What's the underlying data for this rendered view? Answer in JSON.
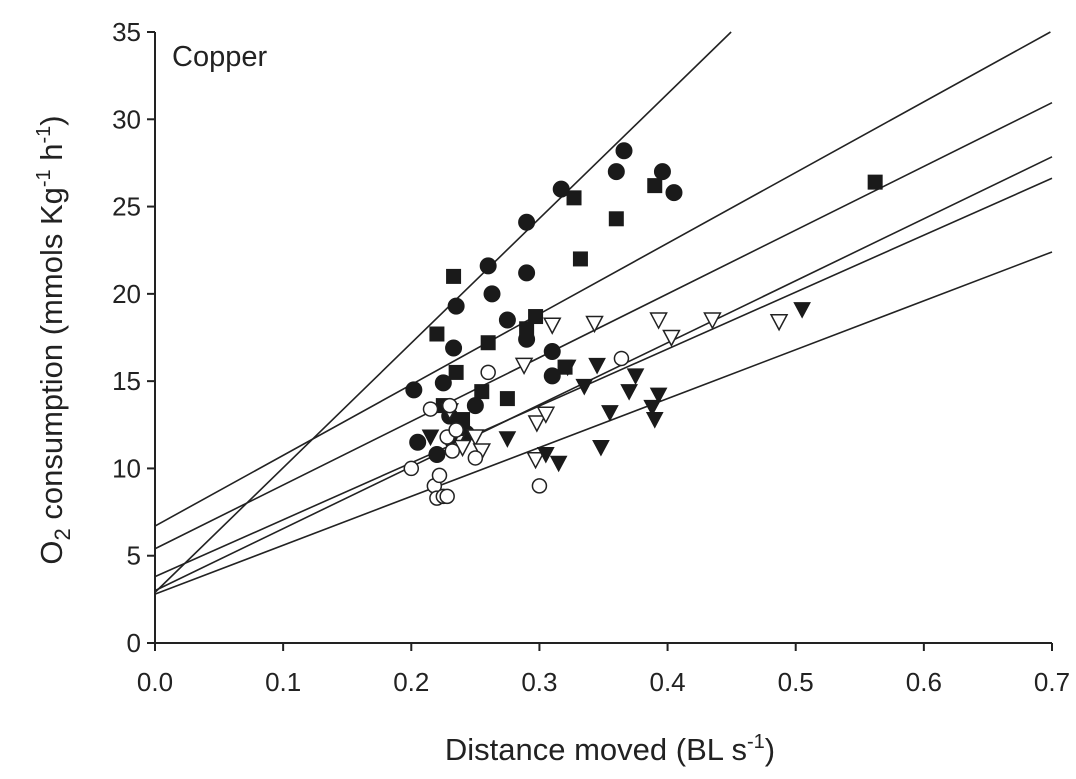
{
  "chart_data": {
    "type": "scatter",
    "panel_label": "Copper",
    "xlabel": {
      "main": "Distance moved (BL s",
      "sup": "-1",
      "tail": ")"
    },
    "ylabel": {
      "pre": "O",
      "sub": "2",
      "mid": " consumption (mmols Kg",
      "sup1": "-1",
      "mid2": " h",
      "sup2": "-1",
      "tail": ")"
    },
    "xlim": [
      0.0,
      0.7
    ],
    "ylim": [
      0,
      35
    ],
    "x_ticks": [
      "0.0",
      "0.1",
      "0.2",
      "0.3",
      "0.4",
      "0.5",
      "0.6",
      "0.7"
    ],
    "y_ticks": [
      "0",
      "5",
      "10",
      "15",
      "20",
      "25",
      "30",
      "35"
    ],
    "grid": false,
    "colors": {
      "ink": "#222222",
      "marker_fill": "#1a1a1a",
      "open_fill": "#ffffff"
    },
    "series": [
      {
        "marker": "filled-circle",
        "points": [
          [
            0.202,
            14.5
          ],
          [
            0.205,
            11.5
          ],
          [
            0.22,
            10.8
          ],
          [
            0.225,
            14.9
          ],
          [
            0.23,
            13.0
          ],
          [
            0.233,
            16.9
          ],
          [
            0.235,
            19.3
          ],
          [
            0.24,
            12.2
          ],
          [
            0.243,
            12.0
          ],
          [
            0.25,
            13.6
          ],
          [
            0.26,
            21.6
          ],
          [
            0.263,
            20.0
          ],
          [
            0.275,
            18.5
          ],
          [
            0.29,
            24.1
          ],
          [
            0.29,
            21.2
          ],
          [
            0.29,
            17.4
          ],
          [
            0.31,
            16.7
          ],
          [
            0.31,
            15.3
          ],
          [
            0.317,
            26.0
          ],
          [
            0.36,
            27.0
          ],
          [
            0.366,
            28.2
          ],
          [
            0.396,
            27.0
          ],
          [
            0.405,
            25.8
          ]
        ]
      },
      {
        "marker": "filled-square",
        "points": [
          [
            0.22,
            17.7
          ],
          [
            0.225,
            13.6
          ],
          [
            0.233,
            21.0
          ],
          [
            0.235,
            15.5
          ],
          [
            0.24,
            12.8
          ],
          [
            0.255,
            14.4
          ],
          [
            0.26,
            17.2
          ],
          [
            0.275,
            14.0
          ],
          [
            0.29,
            18.0
          ],
          [
            0.297,
            18.7
          ],
          [
            0.32,
            15.8
          ],
          [
            0.327,
            25.5
          ],
          [
            0.332,
            22.0
          ],
          [
            0.36,
            24.3
          ],
          [
            0.39,
            26.2
          ],
          [
            0.562,
            26.4
          ]
        ]
      },
      {
        "marker": "open-triangle-down",
        "points": [
          [
            0.23,
            13.3
          ],
          [
            0.235,
            11.5
          ],
          [
            0.24,
            11.2
          ],
          [
            0.25,
            11.8
          ],
          [
            0.255,
            11.0
          ],
          [
            0.288,
            15.9
          ],
          [
            0.297,
            10.5
          ],
          [
            0.298,
            12.6
          ],
          [
            0.305,
            13.1
          ],
          [
            0.31,
            18.2
          ],
          [
            0.343,
            18.3
          ],
          [
            0.393,
            18.5
          ],
          [
            0.403,
            17.5
          ],
          [
            0.435,
            18.5
          ],
          [
            0.487,
            18.4
          ]
        ]
      },
      {
        "marker": "filled-triangle-down",
        "points": [
          [
            0.215,
            11.8
          ],
          [
            0.23,
            11.4
          ],
          [
            0.275,
            11.7
          ],
          [
            0.305,
            10.8
          ],
          [
            0.315,
            10.3
          ],
          [
            0.322,
            15.8
          ],
          [
            0.335,
            14.7
          ],
          [
            0.345,
            15.9
          ],
          [
            0.348,
            11.2
          ],
          [
            0.355,
            13.2
          ],
          [
            0.37,
            14.4
          ],
          [
            0.375,
            15.3
          ],
          [
            0.388,
            13.5
          ],
          [
            0.39,
            12.8
          ],
          [
            0.393,
            14.2
          ],
          [
            0.505,
            19.1
          ]
        ]
      },
      {
        "marker": "open-circle",
        "points": [
          [
            0.2,
            10.0
          ],
          [
            0.215,
            13.4
          ],
          [
            0.218,
            9.0
          ],
          [
            0.22,
            8.3
          ],
          [
            0.222,
            9.6
          ],
          [
            0.225,
            8.4
          ],
          [
            0.228,
            8.4
          ],
          [
            0.228,
            11.8
          ],
          [
            0.23,
            13.6
          ],
          [
            0.232,
            11.0
          ],
          [
            0.235,
            12.2
          ],
          [
            0.25,
            10.6
          ],
          [
            0.26,
            15.5
          ],
          [
            0.3,
            9.0
          ],
          [
            0.364,
            16.3
          ]
        ]
      }
    ],
    "regression_lines": [
      {
        "intercept": 2.9,
        "slope": 71.4
      },
      {
        "intercept": 6.7,
        "slope": 40.5
      },
      {
        "intercept": 5.4,
        "slope": 36.5
      },
      {
        "intercept": 3.0,
        "slope": 35.5
      },
      {
        "intercept": 3.8,
        "slope": 32.6
      },
      {
        "intercept": 2.8,
        "slope": 28.0
      }
    ]
  }
}
